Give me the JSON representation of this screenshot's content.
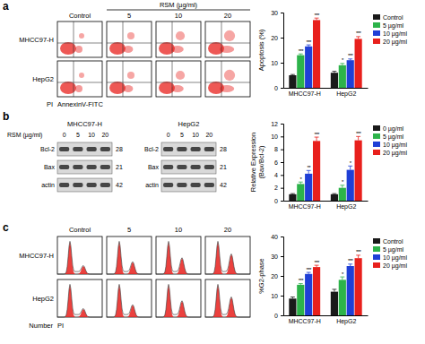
{
  "chart_data": [
    {
      "type": "bar",
      "y_label": [
        "Apoptosis (%)"
      ],
      "categories": [
        "MHCC97-H",
        "HepG2"
      ],
      "ylim": [
        0,
        30
      ],
      "yticks": [
        0,
        10,
        20,
        30
      ],
      "legend": "right",
      "series": [
        {
          "name": "Control",
          "color": "#1a1a1a",
          "values": [
            5,
            6
          ],
          "errors": [
            0.3,
            0.6
          ],
          "significance": [
            null,
            null
          ]
        },
        {
          "name": "5 µg/ml",
          "color": "#2db34a",
          "values": [
            13,
            9
          ],
          "errors": [
            0.5,
            0.7
          ],
          "significance": [
            "***",
            "*"
          ]
        },
        {
          "name": "10 µg/ml",
          "color": "#1f3fd6",
          "values": [
            16.5,
            11
          ],
          "errors": [
            0.6,
            0.5
          ],
          "significance": [
            "***",
            "***"
          ]
        },
        {
          "name": "20 µg/ml",
          "color": "#e8201c",
          "values": [
            27,
            19.5
          ],
          "errors": [
            0.8,
            0.9
          ],
          "significance": [
            "***",
            "***"
          ]
        }
      ]
    },
    {
      "type": "bar",
      "y_label": [
        "Relative Expression",
        "(Bax/Bcl-2)"
      ],
      "categories": [
        "MHCC97-H",
        "HepG2"
      ],
      "ylim": [
        0,
        12
      ],
      "yticks": [
        0,
        2,
        4,
        6,
        8,
        10,
        12
      ],
      "legend": "right",
      "series": [
        {
          "name": "0 µg/ml",
          "color": "#1a1a1a",
          "values": [
            1,
            1
          ],
          "errors": [
            0.1,
            0.1
          ],
          "significance": [
            null,
            null
          ]
        },
        {
          "name": "5 µg/ml",
          "color": "#2db34a",
          "values": [
            2.6,
            2
          ],
          "errors": [
            0.3,
            0.4
          ],
          "significance": [
            "*",
            "*"
          ]
        },
        {
          "name": "10 µg/ml",
          "color": "#1f3fd6",
          "values": [
            4.2,
            4.8
          ],
          "errors": [
            0.5,
            0.6
          ],
          "significance": [
            "**",
            "*"
          ]
        },
        {
          "name": "20 µg/ml",
          "color": "#e8201c",
          "values": [
            9.3,
            9.4
          ],
          "errors": [
            0.6,
            0.6
          ],
          "significance": [
            "***",
            "***"
          ]
        }
      ]
    },
    {
      "type": "bar",
      "y_label": [
        "%G2-phase"
      ],
      "categories": [
        "MHCC97-H",
        "HepG2"
      ],
      "ylim": [
        0,
        40
      ],
      "yticks": [
        0,
        10,
        20,
        30,
        40
      ],
      "legend": "right",
      "series": [
        {
          "name": "Control",
          "color": "#1a1a1a",
          "values": [
            8.5,
            12
          ],
          "errors": [
            0.8,
            1.2
          ],
          "significance": [
            null,
            null
          ]
        },
        {
          "name": "5 µg/ml",
          "color": "#2db34a",
          "values": [
            15.5,
            18
          ],
          "errors": [
            0.6,
            1.5
          ],
          "significance": [
            "***",
            "*"
          ]
        },
        {
          "name": "10 µg/ml",
          "color": "#1f3fd6",
          "values": [
            21,
            25
          ],
          "errors": [
            0.8,
            1.0
          ],
          "significance": [
            "***",
            "***"
          ]
        },
        {
          "name": "20 µg/ml",
          "color": "#e8201c",
          "values": [
            24.5,
            29
          ],
          "errors": [
            0.9,
            1.5
          ],
          "significance": [
            "***",
            "***"
          ]
        }
      ]
    }
  ],
  "figure": {
    "panel_labels": [
      "a",
      "b",
      "c"
    ],
    "apoptosis_plots": {
      "treatment_label": "RSM (µg/ml)",
      "columns": [
        "Control",
        "5",
        "10",
        "20"
      ],
      "rows": [
        "MHCC97-H",
        "HepG2"
      ],
      "x_label": "AnnexinV-FITC",
      "y_label": "PI"
    },
    "western_blot": {
      "treatment_label": "RSM (µg/ml)",
      "groups": [
        "MHCC97-H",
        "HepG2"
      ],
      "lanes": [
        "0",
        "5",
        "10",
        "20"
      ],
      "proteins": [
        "Bcl-2",
        "Bax",
        "actin"
      ],
      "kda": [
        28,
        21,
        42
      ]
    },
    "cell_cycle_plots": {
      "columns": [
        "Control",
        "5",
        "10",
        "20"
      ],
      "rows": [
        "MHCC97-H",
        "HepG2"
      ],
      "x_label": "PI",
      "y_label": "Number"
    }
  }
}
